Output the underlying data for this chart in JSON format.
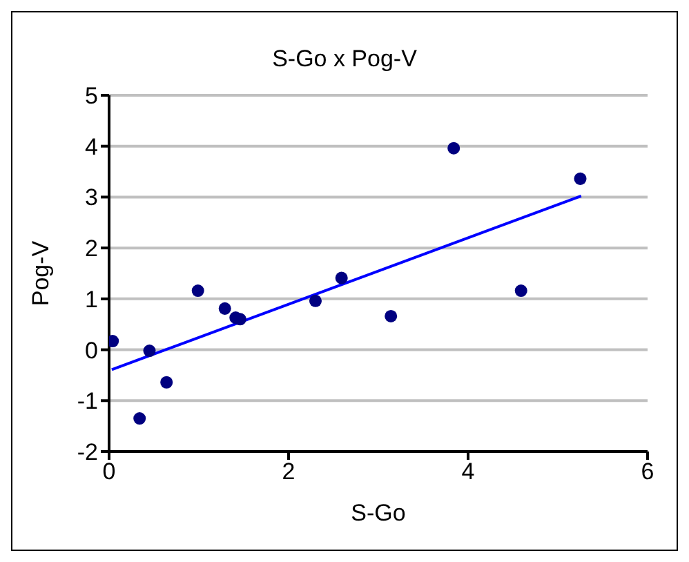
{
  "chart_data": {
    "type": "scatter",
    "title": "S-Go x  Pog-V",
    "xlabel": "S-Go",
    "ylabel": "Pog-V",
    "xlim": [
      0,
      6
    ],
    "xticks": [
      0,
      2,
      4,
      6
    ],
    "ylim": [
      -2,
      5
    ],
    "yticks": [
      -2,
      -1,
      0,
      1,
      2,
      3,
      4,
      5
    ],
    "grid": "y",
    "series": [
      {
        "marker": "circle",
        "color": "#000080",
        "x": [
          0.04,
          0.45,
          0.34,
          0.64,
          0.99,
          1.29,
          1.41,
          1.46,
          2.3,
          2.59,
          3.14,
          3.84,
          4.59,
          5.25
        ],
        "values": [
          0.17,
          -0.02,
          -1.35,
          -0.64,
          1.16,
          0.81,
          0.63,
          0.6,
          0.96,
          1.41,
          0.66,
          3.96,
          1.16,
          3.36
        ]
      },
      {
        "type": "line",
        "color": "#0000ff",
        "x": [
          0.03,
          5.26
        ],
        "values": [
          -0.39,
          3.02
        ]
      }
    ]
  }
}
